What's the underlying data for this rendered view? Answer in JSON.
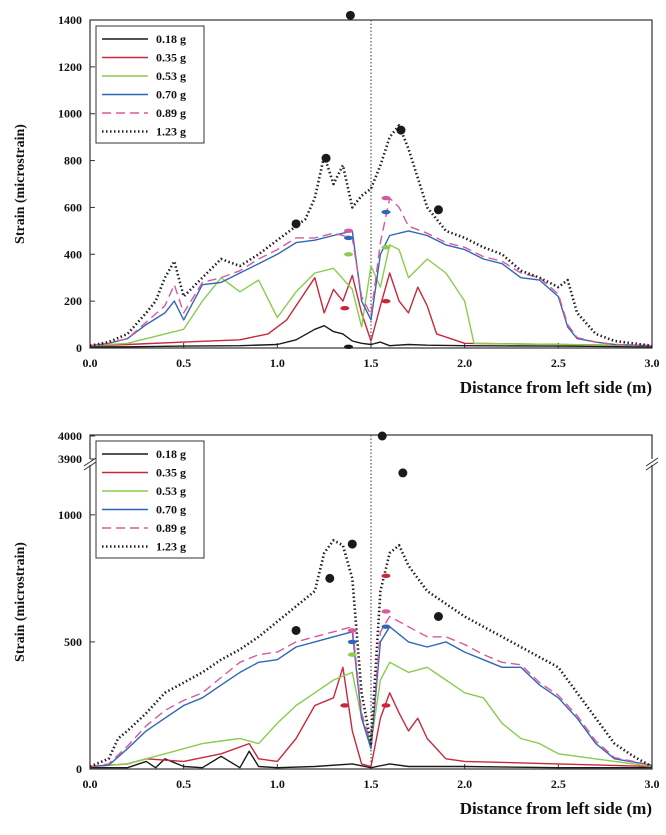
{
  "chart_data": [
    {
      "type": "line",
      "title": "",
      "xlabel": "Distance from left side (m)",
      "ylabel": "Strain (microstrain)",
      "xlim": [
        0.0,
        3.0
      ],
      "ylim": [
        0,
        1400
      ],
      "xticks": [
        "0.0",
        "0.5",
        "1.0",
        "1.5",
        "2.0",
        "2.5",
        "3.0"
      ],
      "yticks": [
        "0",
        "200",
        "400",
        "600",
        "800",
        "1000",
        "1200",
        "1400"
      ],
      "legend_position": "top-left",
      "reference_line_x": 1.5,
      "series": [
        {
          "name": "0.18 g",
          "color": "#1a1a1a",
          "dash": "solid",
          "x": [
            0.0,
            0.2,
            0.5,
            0.8,
            1.0,
            1.1,
            1.2,
            1.25,
            1.3,
            1.35,
            1.4,
            1.45,
            1.5,
            1.55,
            1.6,
            1.7,
            1.8,
            2.0,
            2.5,
            3.0
          ],
          "y": [
            5,
            5,
            8,
            10,
            15,
            35,
            80,
            95,
            70,
            60,
            30,
            20,
            15,
            25,
            10,
            15,
            12,
            10,
            8,
            5
          ]
        },
        {
          "name": "0.35 g",
          "color": "#c8283c",
          "dash": "solid",
          "x": [
            0.0,
            0.2,
            0.5,
            0.8,
            0.95,
            1.05,
            1.15,
            1.2,
            1.25,
            1.3,
            1.35,
            1.4,
            1.45,
            1.5,
            1.55,
            1.6,
            1.65,
            1.7,
            1.75,
            1.8,
            1.85,
            2.0,
            2.5,
            3.0
          ],
          "y": [
            10,
            15,
            25,
            35,
            60,
            120,
            240,
            300,
            150,
            250,
            200,
            310,
            150,
            30,
            180,
            320,
            200,
            150,
            260,
            180,
            60,
            20,
            15,
            10
          ]
        },
        {
          "name": "0.53 g",
          "color": "#8acc4e",
          "dash": "solid",
          "x": [
            0.0,
            0.2,
            0.5,
            0.6,
            0.7,
            0.8,
            0.9,
            1.0,
            1.1,
            1.2,
            1.3,
            1.4,
            1.45,
            1.5,
            1.55,
            1.6,
            1.65,
            1.7,
            1.8,
            1.9,
            2.0,
            2.05,
            2.5,
            3.0
          ],
          "y": [
            10,
            20,
            80,
            200,
            300,
            240,
            290,
            130,
            240,
            320,
            340,
            250,
            90,
            350,
            260,
            440,
            420,
            300,
            380,
            320,
            200,
            20,
            15,
            10
          ]
        },
        {
          "name": "0.70 g",
          "color": "#2f66b8",
          "dash": "solid",
          "x": [
            0.0,
            0.1,
            0.2,
            0.3,
            0.4,
            0.45,
            0.5,
            0.6,
            0.7,
            0.8,
            0.9,
            1.0,
            1.1,
            1.2,
            1.3,
            1.4,
            1.45,
            1.5,
            1.55,
            1.6,
            1.7,
            1.8,
            1.9,
            2.0,
            2.1,
            2.2,
            2.3,
            2.4,
            2.5,
            2.55,
            2.6,
            2.7,
            2.8,
            3.0
          ],
          "y": [
            10,
            20,
            40,
            100,
            150,
            200,
            120,
            270,
            280,
            320,
            360,
            400,
            450,
            460,
            480,
            500,
            200,
            120,
            400,
            480,
            500,
            480,
            440,
            420,
            380,
            360,
            300,
            290,
            220,
            90,
            40,
            25,
            15,
            10
          ]
        },
        {
          "name": "0.89 g",
          "color": "#d9589e",
          "dash": "dashed",
          "x": [
            0.0,
            0.1,
            0.2,
            0.3,
            0.4,
            0.45,
            0.5,
            0.6,
            0.7,
            0.8,
            0.9,
            1.0,
            1.1,
            1.2,
            1.3,
            1.4,
            1.45,
            1.5,
            1.55,
            1.6,
            1.65,
            1.7,
            1.8,
            1.9,
            2.0,
            2.1,
            2.2,
            2.3,
            2.4,
            2.5,
            2.55,
            2.6,
            2.7,
            2.8,
            3.0
          ],
          "y": [
            10,
            20,
            40,
            110,
            180,
            270,
            150,
            280,
            300,
            330,
            380,
            420,
            470,
            470,
            490,
            470,
            220,
            140,
            450,
            640,
            600,
            520,
            490,
            450,
            430,
            390,
            370,
            320,
            300,
            230,
            100,
            45,
            25,
            15,
            10
          ]
        },
        {
          "name": "1.23 g",
          "color": "#222222",
          "dash": "dotted",
          "x": [
            0.0,
            0.1,
            0.2,
            0.3,
            0.35,
            0.4,
            0.45,
            0.5,
            0.6,
            0.7,
            0.8,
            0.9,
            1.0,
            1.1,
            1.15,
            1.2,
            1.25,
            1.3,
            1.35,
            1.4,
            1.45,
            1.5,
            1.55,
            1.6,
            1.65,
            1.7,
            1.8,
            1.9,
            2.0,
            2.1,
            2.2,
            2.3,
            2.4,
            2.5,
            2.55,
            2.6,
            2.7,
            2.8,
            3.0
          ],
          "y": [
            10,
            25,
            60,
            150,
            200,
            300,
            370,
            220,
            300,
            380,
            350,
            400,
            460,
            520,
            550,
            640,
            820,
            700,
            780,
            600,
            650,
            680,
            780,
            900,
            950,
            850,
            600,
            500,
            470,
            430,
            400,
            330,
            300,
            260,
            290,
            150,
            60,
            30,
            10
          ]
        }
      ],
      "markers": [
        {
          "shape": "dot",
          "color": "#1a1a1a",
          "x": 1.39,
          "y": 1420
        },
        {
          "shape": "dot",
          "color": "#1a1a1a",
          "x": 1.1,
          "y": 530
        },
        {
          "shape": "dot",
          "color": "#1a1a1a",
          "x": 1.26,
          "y": 810
        },
        {
          "shape": "dot",
          "color": "#1a1a1a",
          "x": 1.66,
          "y": 930
        },
        {
          "shape": "dot",
          "color": "#1a1a1a",
          "x": 1.86,
          "y": 590
        },
        {
          "shape": "dash",
          "color": "#d9589e",
          "x": 1.38,
          "y": 500
        },
        {
          "shape": "dash",
          "color": "#2f66b8",
          "x": 1.38,
          "y": 470
        },
        {
          "shape": "dash",
          "color": "#8acc4e",
          "x": 1.38,
          "y": 400
        },
        {
          "shape": "dash",
          "color": "#d9589e",
          "x": 1.58,
          "y": 640
        },
        {
          "shape": "dash",
          "color": "#2f66b8",
          "x": 1.58,
          "y": 580
        },
        {
          "shape": "dash",
          "color": "#8acc4e",
          "x": 1.58,
          "y": 430
        },
        {
          "shape": "dash",
          "color": "#c8283c",
          "x": 1.36,
          "y": 170
        },
        {
          "shape": "dash",
          "color": "#c8283c",
          "x": 1.58,
          "y": 200
        },
        {
          "shape": "dash",
          "color": "#1a1a1a",
          "x": 1.38,
          "y": 5
        }
      ]
    },
    {
      "type": "line",
      "title": "",
      "xlabel": "Distance from left side (m)",
      "ylabel": "Strain (microstrain)",
      "xlim": [
        0.0,
        3.0
      ],
      "ylim": [
        0,
        1200
      ],
      "axis_break": {
        "below": 1200,
        "upper_ticks": [
          3900,
          4000
        ]
      },
      "xticks": [
        "0.0",
        "0.5",
        "1.0",
        "1.5",
        "2.0",
        "2.5",
        "3.0"
      ],
      "yticks": [
        "0",
        "500",
        "1000",
        "3900",
        "4000"
      ],
      "legend_position": "top-left",
      "reference_line_x": 1.5,
      "series": [
        {
          "name": "0.18 g",
          "color": "#1a1a1a",
          "dash": "solid",
          "x": [
            0.0,
            0.2,
            0.3,
            0.35,
            0.4,
            0.5,
            0.6,
            0.7,
            0.8,
            0.85,
            0.9,
            1.0,
            1.2,
            1.4,
            1.5,
            1.6,
            1.7,
            2.0,
            2.5,
            3.0
          ],
          "y": [
            5,
            5,
            30,
            5,
            40,
            10,
            5,
            50,
            5,
            70,
            10,
            5,
            10,
            20,
            5,
            20,
            10,
            10,
            5,
            5
          ]
        },
        {
          "name": "0.35 g",
          "color": "#c8283c",
          "dash": "solid",
          "x": [
            0.0,
            0.2,
            0.3,
            0.5,
            0.7,
            0.85,
            0.9,
            1.0,
            1.1,
            1.2,
            1.3,
            1.35,
            1.4,
            1.45,
            1.5,
            1.55,
            1.6,
            1.65,
            1.7,
            1.75,
            1.8,
            1.9,
            2.0,
            2.5,
            3.0
          ],
          "y": [
            10,
            20,
            40,
            30,
            60,
            100,
            40,
            30,
            120,
            250,
            280,
            400,
            150,
            20,
            10,
            200,
            300,
            220,
            150,
            200,
            120,
            40,
            30,
            20,
            10
          ]
        },
        {
          "name": "0.53 g",
          "color": "#8acc4e",
          "dash": "solid",
          "x": [
            0.0,
            0.2,
            0.3,
            0.4,
            0.5,
            0.6,
            0.7,
            0.8,
            0.9,
            1.0,
            1.1,
            1.2,
            1.3,
            1.4,
            1.45,
            1.5,
            1.55,
            1.6,
            1.7,
            1.8,
            1.9,
            2.0,
            2.1,
            2.2,
            2.3,
            2.4,
            2.5,
            3.0
          ],
          "y": [
            10,
            20,
            40,
            60,
            80,
            100,
            110,
            120,
            100,
            180,
            250,
            300,
            350,
            380,
            200,
            100,
            350,
            420,
            380,
            400,
            350,
            300,
            280,
            180,
            120,
            100,
            60,
            10
          ]
        },
        {
          "name": "0.70 g",
          "color": "#2f66b8",
          "dash": "solid",
          "x": [
            0.0,
            0.1,
            0.2,
            0.3,
            0.4,
            0.5,
            0.6,
            0.7,
            0.8,
            0.9,
            1.0,
            1.1,
            1.2,
            1.3,
            1.4,
            1.45,
            1.5,
            1.55,
            1.6,
            1.7,
            1.8,
            1.9,
            2.0,
            2.1,
            2.2,
            2.3,
            2.4,
            2.5,
            2.6,
            2.7,
            2.8,
            3.0
          ],
          "y": [
            10,
            15,
            80,
            150,
            200,
            250,
            280,
            330,
            380,
            420,
            430,
            480,
            500,
            520,
            540,
            200,
            80,
            500,
            560,
            500,
            480,
            500,
            460,
            430,
            400,
            400,
            330,
            280,
            200,
            100,
            40,
            15
          ]
        },
        {
          "name": "0.89 g",
          "color": "#d9589e",
          "dash": "dashed",
          "x": [
            0.0,
            0.1,
            0.2,
            0.3,
            0.4,
            0.5,
            0.6,
            0.7,
            0.8,
            0.9,
            1.0,
            1.1,
            1.2,
            1.3,
            1.4,
            1.45,
            1.5,
            1.55,
            1.6,
            1.7,
            1.8,
            1.9,
            2.0,
            2.1,
            2.2,
            2.3,
            2.4,
            2.5,
            2.6,
            2.7,
            2.8,
            3.0
          ],
          "y": [
            10,
            20,
            90,
            170,
            230,
            270,
            300,
            360,
            420,
            450,
            460,
            500,
            520,
            540,
            560,
            220,
            100,
            540,
            600,
            560,
            520,
            520,
            490,
            450,
            420,
            410,
            340,
            290,
            210,
            110,
            45,
            15
          ]
        },
        {
          "name": "1.23 g",
          "color": "#222222",
          "dash": "dotted",
          "x": [
            0.0,
            0.1,
            0.15,
            0.2,
            0.3,
            0.4,
            0.5,
            0.6,
            0.7,
            0.8,
            0.9,
            1.0,
            1.1,
            1.2,
            1.25,
            1.3,
            1.35,
            1.4,
            1.45,
            1.5,
            1.55,
            1.6,
            1.65,
            1.7,
            1.8,
            1.9,
            2.0,
            2.1,
            2.2,
            2.3,
            2.4,
            2.5,
            2.6,
            2.7,
            2.8,
            2.9,
            3.0
          ],
          "y": [
            10,
            40,
            120,
            150,
            220,
            300,
            340,
            380,
            430,
            470,
            520,
            580,
            640,
            700,
            850,
            900,
            880,
            750,
            300,
            100,
            700,
            850,
            880,
            800,
            700,
            650,
            600,
            560,
            520,
            480,
            440,
            400,
            300,
            200,
            100,
            50,
            10
          ]
        }
      ],
      "markers": [
        {
          "shape": "dot",
          "color": "#1a1a1a",
          "x": 1.56,
          "y": 4000
        },
        {
          "shape": "dot",
          "color": "#1a1a1a",
          "x": 1.67,
          "y": 1165
        },
        {
          "shape": "dot",
          "color": "#1a1a1a",
          "x": 1.4,
          "y": 885
        },
        {
          "shape": "dot",
          "color": "#1a1a1a",
          "x": 1.28,
          "y": 750
        },
        {
          "shape": "dot",
          "color": "#1a1a1a",
          "x": 1.1,
          "y": 545
        },
        {
          "shape": "dot",
          "color": "#1a1a1a",
          "x": 1.86,
          "y": 600
        },
        {
          "shape": "dash",
          "color": "#d9589e",
          "x": 1.4,
          "y": 545
        },
        {
          "shape": "dash",
          "color": "#2f66b8",
          "x": 1.4,
          "y": 500
        },
        {
          "shape": "dash",
          "color": "#8acc4e",
          "x": 1.4,
          "y": 450
        },
        {
          "shape": "dash",
          "color": "#c8283c",
          "x": 1.58,
          "y": 760
        },
        {
          "shape": "dash",
          "color": "#d9589e",
          "x": 1.58,
          "y": 620
        },
        {
          "shape": "dash",
          "color": "#2f66b8",
          "x": 1.58,
          "y": 560
        },
        {
          "shape": "dash",
          "color": "#c8283c",
          "x": 1.36,
          "y": 250
        },
        {
          "shape": "dash",
          "color": "#c8283c",
          "x": 1.58,
          "y": 250
        }
      ]
    }
  ]
}
